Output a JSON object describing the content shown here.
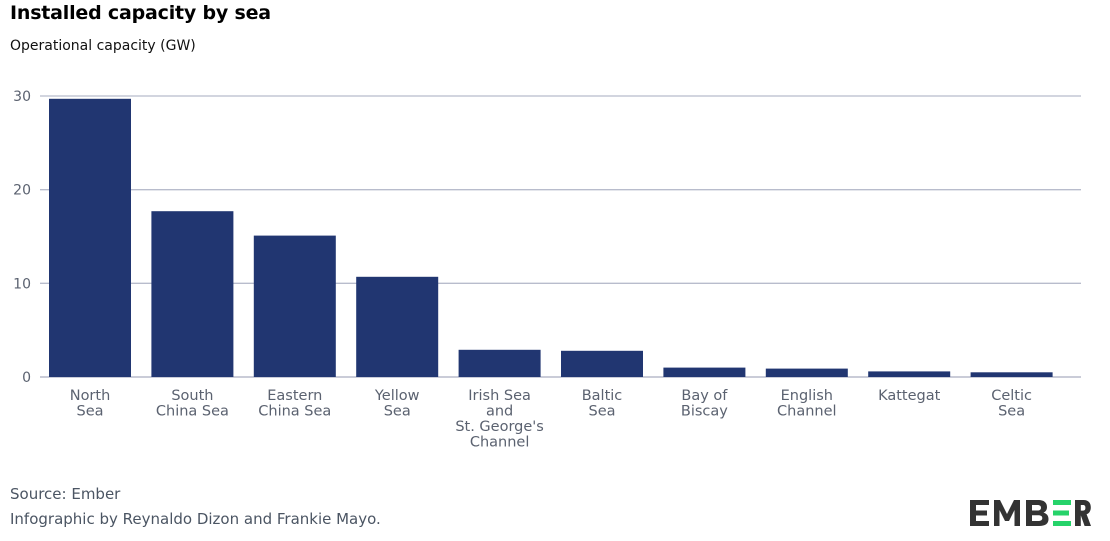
{
  "header": {
    "title": "Installed capacity by sea",
    "subtitle": "Operational capacity (GW)"
  },
  "footer": {
    "source": "Source: Ember",
    "credit": "Infographic by Reynaldo Dizon and Frankie Mayo."
  },
  "logo": {
    "text": "EMBER",
    "accent_color": "#26d36a",
    "text_color": "#333333"
  },
  "colors": {
    "bar": "#213671",
    "grid": "#b8bccc",
    "tick": "#5b6270"
  },
  "chart_data": {
    "type": "bar",
    "title": "Installed capacity by sea",
    "subtitle": "Operational capacity (GW)",
    "xlabel": "",
    "ylabel": "",
    "categories": [
      [
        "North",
        "Sea"
      ],
      [
        "South",
        "China Sea"
      ],
      [
        "Eastern",
        "China Sea"
      ],
      [
        "Yellow",
        "Sea"
      ],
      [
        "Irish Sea",
        "and",
        "St. George's",
        "Channel"
      ],
      [
        "Baltic",
        "Sea"
      ],
      [
        "Bay of",
        "Biscay"
      ],
      [
        "English",
        "Channel"
      ],
      [
        "Kattegat"
      ],
      [
        "Celtic",
        "Sea"
      ]
    ],
    "values": [
      29.7,
      17.7,
      15.1,
      10.7,
      2.9,
      2.8,
      1.0,
      0.9,
      0.6,
      0.5
    ],
    "ylim": [
      0,
      30
    ],
    "yticks": [
      "0",
      "10",
      "20",
      "30"
    ],
    "grid": true,
    "legend": "none"
  }
}
